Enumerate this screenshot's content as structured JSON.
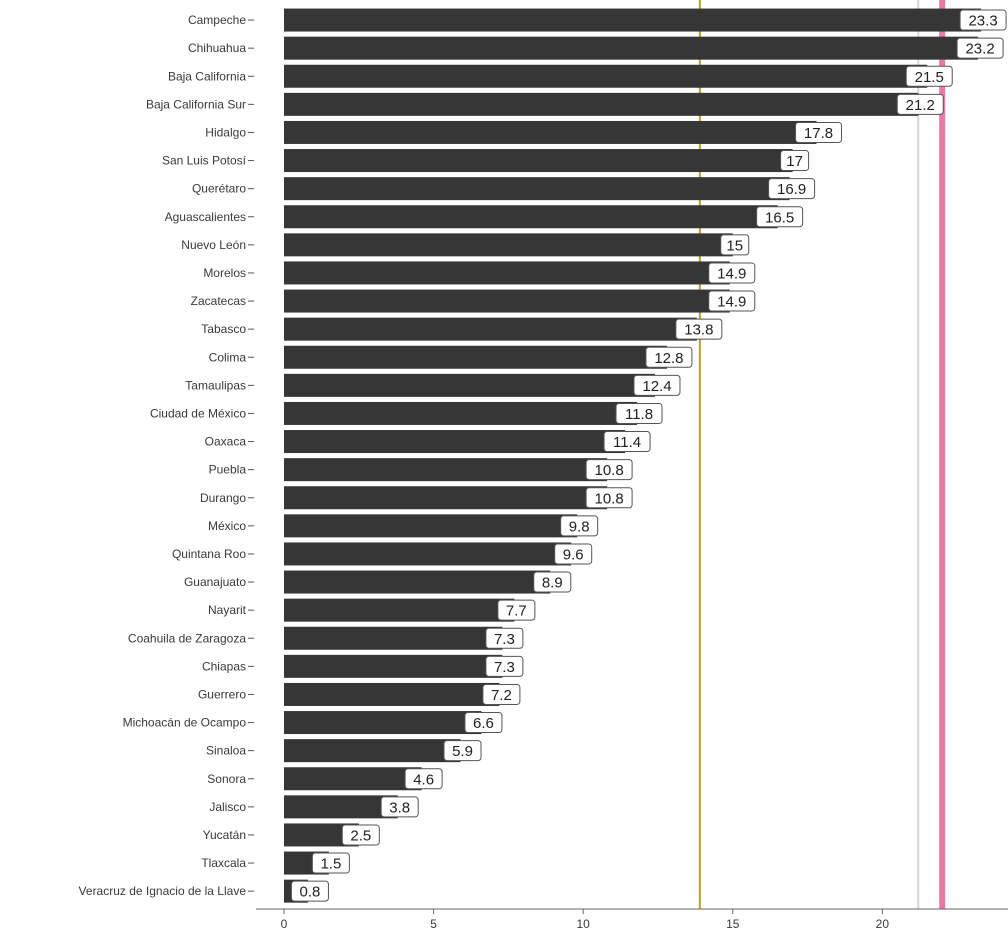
{
  "chart_data": {
    "type": "bar",
    "orientation": "horizontal",
    "title": "",
    "xlabel": "",
    "ylabel": "",
    "categories": [
      "Campeche",
      "Chihuahua",
      "Baja California",
      "Baja California Sur",
      "Hidalgo",
      "San Luis Potosí",
      "Querétaro",
      "Aguascalientes",
      "Nuevo León",
      "Morelos",
      "Zacatecas",
      "Tabasco",
      "Colima",
      "Tamaulipas",
      "Ciudad de México",
      "Oaxaca",
      "Puebla",
      "Durango",
      "México",
      "Quintana Roo",
      "Guanajuato",
      "Nayarit",
      "Coahuila de Zaragoza",
      "Chiapas",
      "Guerrero",
      "Michoacán de Ocampo",
      "Sinaloa",
      "Sonora",
      "Jalisco",
      "Yucatán",
      "Tlaxcala",
      "Veracruz de Ignacio de la Llave"
    ],
    "values": [
      23.3,
      23.2,
      21.5,
      21.2,
      17.8,
      17,
      16.9,
      16.5,
      15,
      14.9,
      14.9,
      13.8,
      12.8,
      12.4,
      11.8,
      11.4,
      10.8,
      10.8,
      9.8,
      9.6,
      8.9,
      7.7,
      7.3,
      7.3,
      7.2,
      6.6,
      5.9,
      4.6,
      3.8,
      2.5,
      1.5,
      0.8
    ],
    "xlim": [
      0,
      24.2
    ],
    "x_ticks": [
      0,
      5,
      10,
      15,
      20
    ],
    "reference_lines": [
      {
        "value": 13.9,
        "color": "#b5a12a"
      },
      {
        "value": 21.2,
        "color": "#d6d6d6"
      },
      {
        "value": 22.0,
        "color": "#e77aa6"
      }
    ],
    "bar_color": "#363636",
    "grid": false,
    "legend": "none"
  }
}
